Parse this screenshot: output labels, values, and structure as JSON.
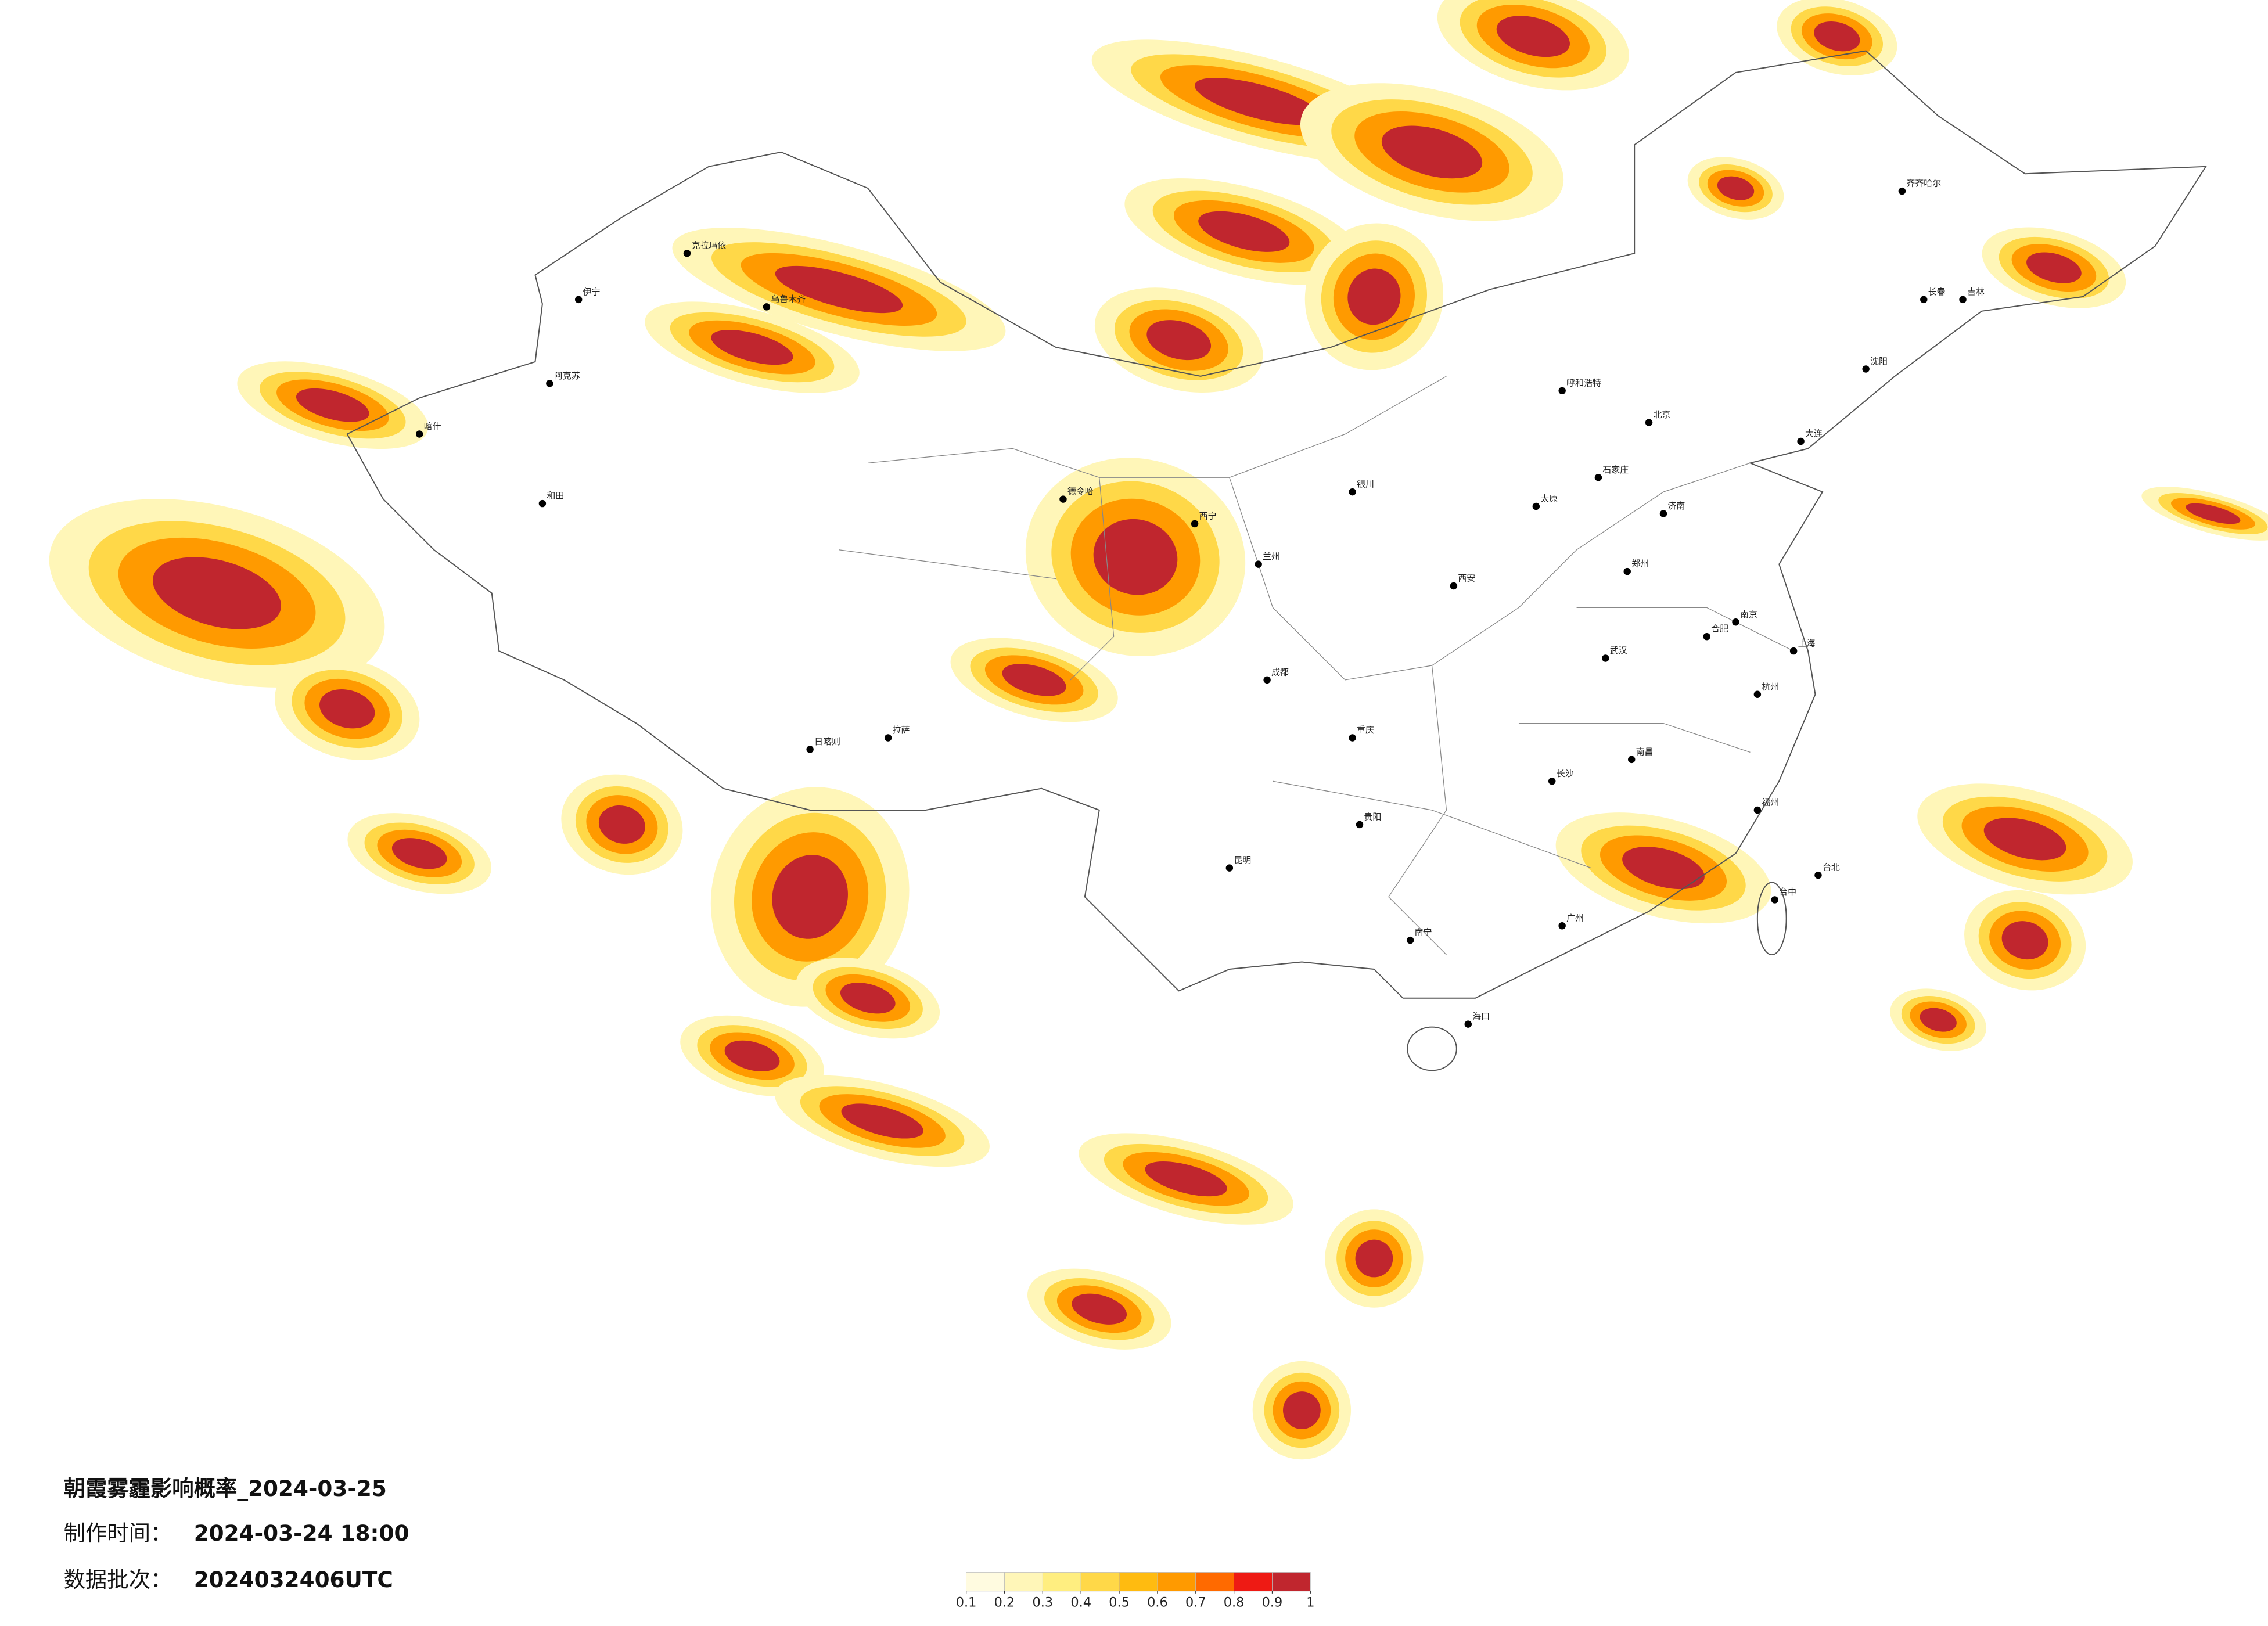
{
  "header": {
    "title": "朝霞雾霾影响概率_2024-03-25",
    "made_label": "制作时间：",
    "made_time": "2024-03-24 18:00",
    "batch_label": "数据批次：",
    "batch": "2024032406UTC"
  },
  "legend": {
    "ticks": [
      0.1,
      0.2,
      0.3,
      0.4,
      0.5,
      0.6,
      0.7,
      0.8,
      0.9,
      1
    ],
    "colors": [
      "#fffbe0",
      "#fff6b8",
      "#ffee80",
      "#ffd848",
      "#ffbb10",
      "#ff9a00",
      "#ff6a00",
      "#ee1a14",
      "#c0262e"
    ]
  },
  "cities": [
    "齐齐哈尔",
    "长春",
    "吉林",
    "沈阳",
    "大连",
    "北京",
    "石家庄",
    "太原",
    "呼和浩特",
    "银川",
    "兰州",
    "西宁",
    "郑州",
    "济南",
    "合肥",
    "南京",
    "上海",
    "杭州",
    "武汉",
    "长沙",
    "南昌",
    "福州",
    "广州",
    "南宁",
    "海口",
    "贵阳",
    "昆明",
    "成都",
    "重庆",
    "拉萨",
    "日喀则",
    "乌鲁木齐",
    "克拉玛依",
    "伊宁",
    "喀什",
    "和田",
    "阿克苏",
    "台北",
    "台中",
    "西安",
    "德令哈"
  ]
}
